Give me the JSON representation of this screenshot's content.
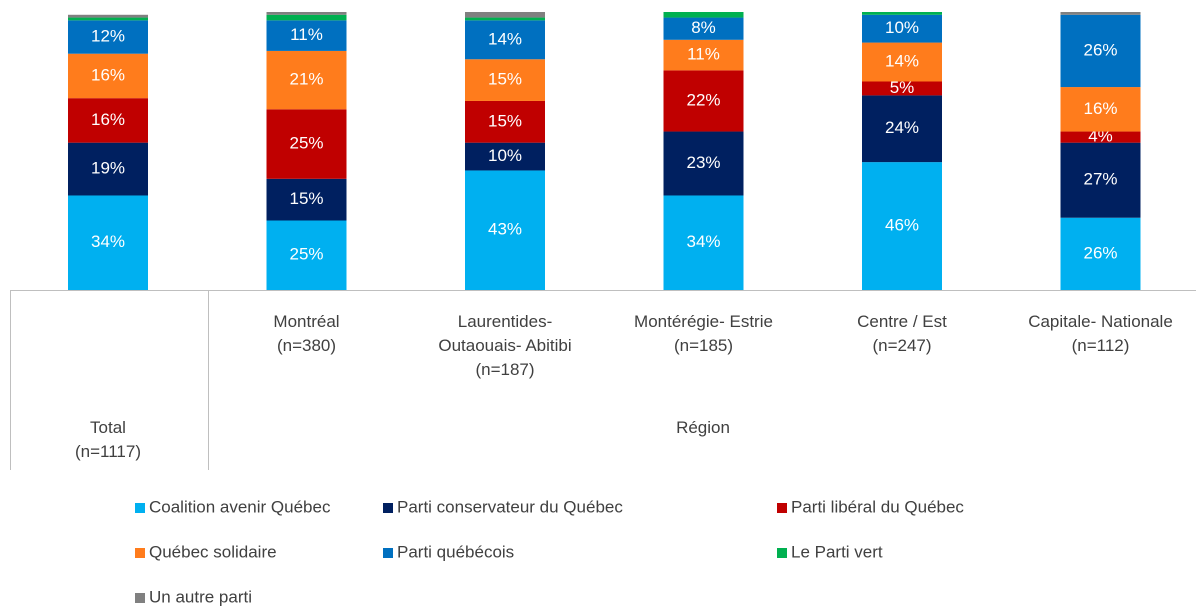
{
  "chart_data": {
    "type": "stacked-bar",
    "categories": [
      "Total\n(n=1117)",
      "Montréal\n(n=380)",
      "Laurentides-\nOutaouais- Abitibi\n(n=187)",
      "Montérégie- Estrie\n(n=185)",
      "Centre / Est\n(n=247)",
      "Capitale- Nationale\n(n=112)"
    ],
    "group_label": "Région",
    "ylim": [
      0,
      100
    ],
    "series": [
      {
        "name": "Coalition avenir Québec",
        "color": "#00b0f0",
        "values": [
          34,
          25,
          43,
          34,
          46,
          26
        ],
        "value_labels": [
          "34%",
          "25%",
          "43%",
          "34%",
          "46%",
          "26%"
        ]
      },
      {
        "name": "Parti conservateur du Québec",
        "color": "#002060",
        "values": [
          19,
          15,
          10,
          23,
          24,
          27
        ],
        "value_labels": [
          "19%",
          "15%",
          "10%",
          "23%",
          "24%",
          "27%"
        ]
      },
      {
        "name": "Parti libéral du Québec",
        "color": "#c00000",
        "values": [
          16,
          25,
          15,
          22,
          5,
          4
        ],
        "value_labels": [
          "16%",
          "25%",
          "15%",
          "22%",
          "5%",
          "4%"
        ]
      },
      {
        "name": "Québec solidaire",
        "color": "#ff7c1c",
        "values": [
          16,
          21,
          15,
          11,
          14,
          16
        ],
        "value_labels": [
          "16%",
          "21%",
          "15%",
          "11%",
          "14%",
          "16%"
        ]
      },
      {
        "name": "Parti québécois",
        "color": "#0070c0",
        "values": [
          12,
          11,
          14,
          8,
          10,
          26
        ],
        "value_labels": [
          "12%",
          "11%",
          "14%",
          "8%",
          "10%",
          "26%"
        ]
      },
      {
        "name": "Le Parti vert",
        "color": "#00b050",
        "values": [
          1,
          2,
          1,
          2,
          1,
          0
        ]
      },
      {
        "name": "Un autre parti",
        "color": "#808080",
        "values": [
          1,
          1,
          2,
          0,
          0,
          1
        ]
      }
    ]
  }
}
